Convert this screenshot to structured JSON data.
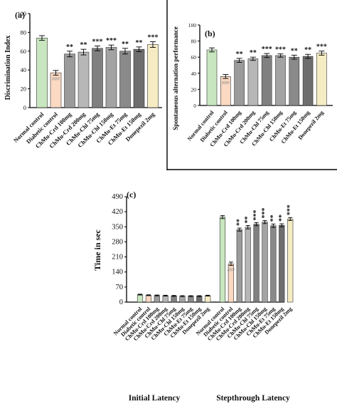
{
  "colors": {
    "normal": "#c8e6bf",
    "diabetic": "#fbd9c2",
    "donepezil": "#f6ecc3",
    "g1": "#9b9b9b",
    "g2": "#b7b7b7",
    "g3": "#808080",
    "g4": "#a3a3a3",
    "g5": "#8a8a8a",
    "g6": "#6e6e6e",
    "g7": "#9a9a9a",
    "axis": "#000000"
  },
  "chart_data": [
    {
      "type": "bar",
      "panel_label": "(a)",
      "ylabel": "Discrimination Index",
      "ylim": [
        0,
        100
      ],
      "yticks": [
        "0",
        "20",
        "40",
        "60",
        "80",
        "100"
      ],
      "categories": [
        "Normal control",
        "Diabetic control",
        "ChMu-Crd 100mg",
        "ChMu-Crd 200mg",
        "ChMu-Chl 75mg",
        "ChMu-Chl 150mg",
        "ChMu-Et 75mg",
        "ChMu-Et 150mg",
        "Donepezil 2mg"
      ],
      "values": [
        74,
        37,
        57,
        59,
        63,
        64,
        60,
        62,
        67
      ],
      "errors": [
        2.5,
        2.5,
        3,
        3,
        2.5,
        2.5,
        3,
        2.5,
        3
      ],
      "annotations": [
        "",
        "###",
        "**",
        "**",
        "***",
        "***",
        "**",
        "**",
        "***"
      ]
    },
    {
      "type": "bar",
      "panel_label": "(b)",
      "ylabel": "Spontaneous alternation performance",
      "ylim": [
        0,
        100
      ],
      "yticks": [
        "0",
        "20",
        "40",
        "60",
        "80",
        "100"
      ],
      "categories": [
        "Normal control",
        "Diabetic control",
        "ChMu-Crd 100mg",
        "ChMu-Crd 200mg",
        "ChMu-Chl 75mg",
        "ChMu-Chl 150mg",
        "ChMu-Et 75mg",
        "ChMu-Et 150mg",
        "Donepezil 2mg"
      ],
      "values": [
        69,
        36,
        56,
        58,
        62,
        62,
        60,
        61,
        65
      ],
      "errors": [
        2.5,
        2.5,
        2.5,
        2,
        2.5,
        2,
        2.5,
        2.5,
        2.5
      ],
      "annotations": [
        "",
        "###",
        "**",
        "**",
        "***",
        "***",
        "**",
        "**",
        "***"
      ]
    },
    {
      "type": "bar",
      "panel_label": "(c)",
      "ylabel": "Time in sec",
      "ylim": [
        0,
        490
      ],
      "yticks": [
        "0",
        "70",
        "140",
        "210",
        "280",
        "350",
        "420",
        "490"
      ],
      "groups": [
        {
          "label": "Initial Latency",
          "categories": [
            "Normal control",
            "Diabetic control",
            "ChMu-Crd 100mg",
            "ChMu-Crd 200mg",
            "ChMu-Chl 75mg",
            "ChMu-Chl 150mg",
            "ChMu-Et 75mg",
            "ChMu-Et 150mg",
            "Donepezil 2mg"
          ],
          "values": [
            35,
            32,
            31,
            30,
            29,
            28,
            28,
            28,
            30
          ],
          "errors": [
            2,
            2,
            2,
            2,
            2,
            2,
            2,
            2,
            2
          ],
          "annotations": [
            "",
            "",
            "",
            "",
            "",
            "",
            "",
            "",
            ""
          ]
        },
        {
          "label": "Stepthrough Latency",
          "categories": [
            "Normal control",
            "Diabetic control",
            "ChMu-Crd 100mg",
            "ChMu-Crd 200mg",
            "ChMu-Chl 75mg",
            "ChMu-Chl 150mg",
            "ChMu-Et 75mg",
            "ChMu-Et 150mg",
            "Donepezil 2mg"
          ],
          "values": [
            395,
            178,
            337,
            348,
            362,
            372,
            355,
            357,
            386
          ],
          "errors": [
            7,
            8,
            7,
            8,
            7,
            7,
            8,
            7,
            7
          ],
          "annotations": [
            "",
            "###",
            "**",
            "**",
            "***",
            "***",
            "**",
            "**",
            "***"
          ]
        }
      ]
    }
  ]
}
